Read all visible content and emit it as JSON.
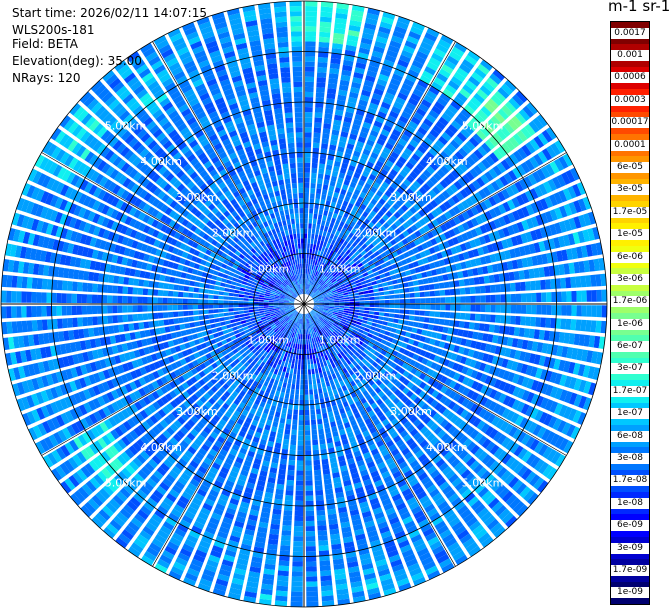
{
  "header": {
    "start_time": "Start time: 2026/02/11 14:07:15",
    "instrument": "WLS200s-181",
    "field": "Field: BETA",
    "elevation": "Elevation(deg): 35.00",
    "nrays": "NRays: 120"
  },
  "colorbar": {
    "title": "m-1 sr-1",
    "labels": [
      "0.0017",
      "0.001",
      "0.0006",
      "0.0003",
      "0.00017",
      "0.0001",
      "6e-05",
      "3e-05",
      "1.7e-05",
      "1e-05",
      "6e-06",
      "3e-06",
      "1.7e-06",
      "1e-06",
      "6e-07",
      "3e-07",
      "1.7e-07",
      "1e-07",
      "6e-08",
      "3e-08",
      "1.7e-08",
      "1e-08",
      "6e-09",
      "3e-09",
      "1.7e-09",
      "1e-09"
    ],
    "colors": [
      "#800000",
      "#b00000",
      "#dd0000",
      "#ff2000",
      "#ff4a00",
      "#ff7400",
      "#ff9600",
      "#ffb400",
      "#ffd400",
      "#fff000",
      "#f0ff10",
      "#c8ff40",
      "#9eff6a",
      "#78ff90",
      "#50ffb0",
      "#30ffd0",
      "#10f0f0",
      "#00c8ff",
      "#00a0ff",
      "#0078ff",
      "#0050ff",
      "#0028ff",
      "#0000ff",
      "#0000d0",
      "#0000a0",
      "#000070"
    ]
  },
  "chart_data": {
    "type": "heatmap",
    "projection": "polar (PPI scan)",
    "field": "BETA",
    "elevation_deg": 35.0,
    "nrays": 120,
    "range_rings_km": [
      1,
      2,
      3,
      4,
      5
    ],
    "range_ring_labels": [
      "1.00km",
      "2.00km",
      "3.00km",
      "4.00km",
      "5.00km"
    ],
    "max_range_km": 6.0,
    "azimuth_gridlines_deg": [
      0,
      30,
      60,
      90,
      120,
      150,
      180,
      210,
      240,
      270,
      300,
      330
    ],
    "color_scale": "log",
    "value_range": [
      1e-09,
      0.0017
    ],
    "dominant_value": 3e-08,
    "high_value_patches": [
      {
        "azimuth_deg": 5,
        "range_km": [
          5.2,
          6.0
        ],
        "value": 3e-07
      },
      {
        "azimuth_deg": 35,
        "range_km": [
          5.0,
          5.9
        ],
        "value": 1.7e-07
      },
      {
        "azimuth_deg": 48,
        "range_km": [
          4.8,
          5.7
        ],
        "value": 6e-07
      },
      {
        "azimuth_deg": 232,
        "range_km": [
          4.6,
          5.3
        ],
        "value": 1.7e-07
      },
      {
        "azimuth_deg": 305,
        "range_km": [
          5.2,
          5.9
        ],
        "value": 1.7e-07
      },
      {
        "azimuth_deg": 320,
        "range_km": [
          4.9,
          5.5
        ],
        "value": 1e-07
      }
    ],
    "low_value_ring_km": [
      0.3,
      1.6
    ],
    "low_value": 6e-09
  }
}
